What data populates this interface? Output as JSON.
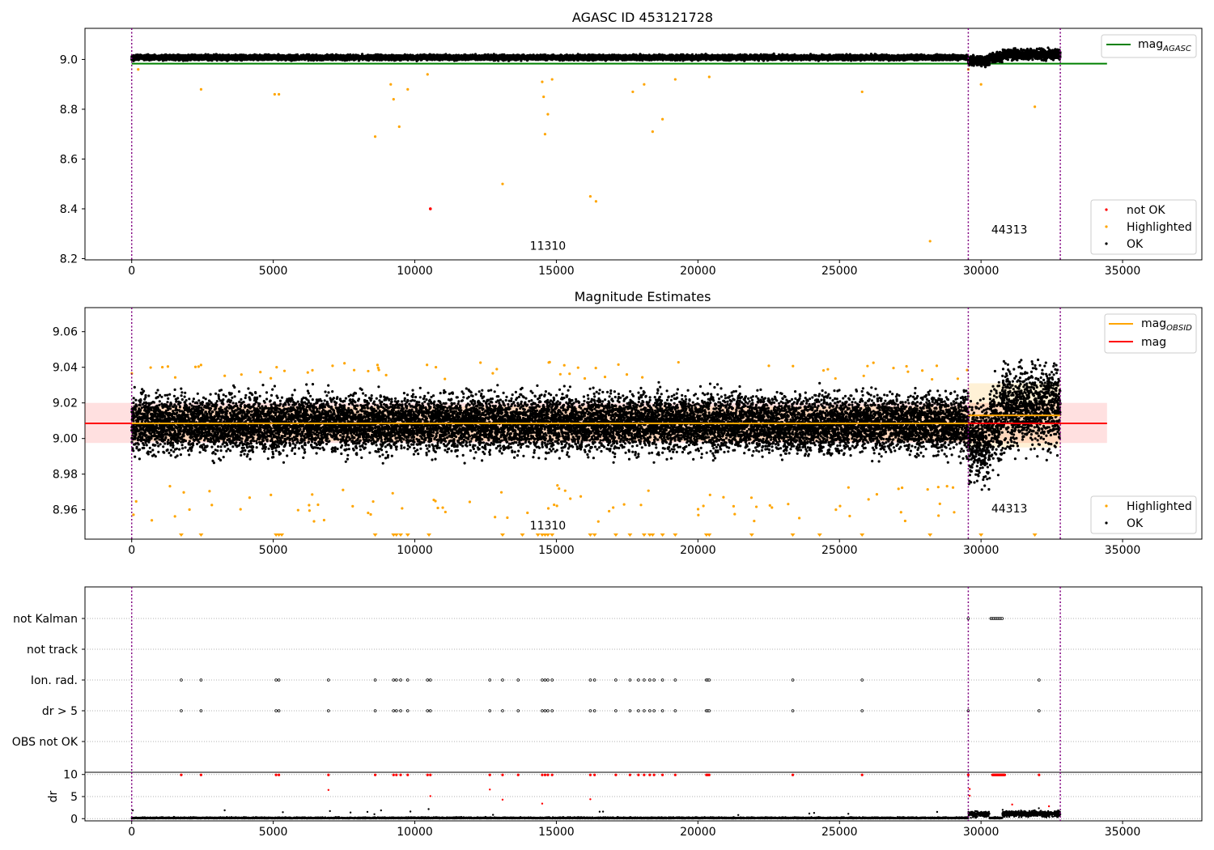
{
  "figure_title": "AGASC ID 453121728",
  "colors": {
    "ok": "#000000",
    "highlighted": "#ffa500",
    "not_ok": "#ff0000",
    "mag_agasc": "#008000",
    "mag_obsid": "#ffa500",
    "mag": "#ff0000",
    "obs_boundary": "#800080"
  },
  "chart_data": [
    {
      "type": "scatter",
      "title": "AGASC ID 453121728",
      "xlim": [
        -1650,
        37800
      ],
      "ylim": [
        8.195,
        9.125
      ],
      "xticks": [
        0,
        5000,
        10000,
        15000,
        20000,
        25000,
        30000,
        35000
      ],
      "yticks": [
        8.2,
        8.4,
        8.6,
        8.8,
        9.0
      ],
      "ytick_labels": [
        "8.2",
        "8.4",
        "8.6",
        "8.8",
        "9.0"
      ],
      "obs_boundaries": [
        0,
        29550,
        32800
      ],
      "obs_labels": [
        {
          "x": 14700,
          "y": 8.235,
          "text": "11310"
        },
        {
          "x": 31000,
          "y": 8.3,
          "text": "44313"
        }
      ],
      "mag_agasc": {
        "x": [
          0,
          34450
        ],
        "y": 8.983
      },
      "series": [
        {
          "name": "not OK",
          "points": [
            [
              10550,
              8.4
            ]
          ]
        },
        {
          "name": "Highlighted",
          "points": [
            [
              230,
              8.96
            ],
            [
              2450,
              8.88
            ],
            [
              5050,
              8.86
            ],
            [
              5200,
              8.86
            ],
            [
              8600,
              8.69
            ],
            [
              9150,
              8.9
            ],
            [
              9250,
              8.84
            ],
            [
              9450,
              8.73
            ],
            [
              9750,
              8.88
            ],
            [
              10450,
              8.94
            ],
            [
              13100,
              8.5
            ],
            [
              14500,
              8.91
            ],
            [
              14550,
              8.85
            ],
            [
              14600,
              8.7
            ],
            [
              14700,
              8.78
            ],
            [
              14850,
              8.92
            ],
            [
              16200,
              8.45
            ],
            [
              16400,
              8.43
            ],
            [
              17700,
              8.87
            ],
            [
              18100,
              8.9
            ],
            [
              18400,
              8.71
            ],
            [
              18750,
              8.76
            ],
            [
              19200,
              8.92
            ],
            [
              20400,
              8.93
            ],
            [
              25800,
              8.87
            ],
            [
              28200,
              8.27
            ],
            [
              29550,
              8.96
            ],
            [
              30000,
              8.9
            ],
            [
              31900,
              8.81
            ]
          ]
        },
        {
          "name": "OK",
          "summary": "dense band of OK points near 9.01 from x=0 to 32800"
        }
      ],
      "legend": {
        "position": "top-right",
        "entries": [
          "mag_AGASC"
        ]
      },
      "legend2": {
        "position": "bottom-right",
        "entries": [
          "not OK",
          "Highlighted",
          "OK"
        ]
      }
    },
    {
      "type": "scatter",
      "title": "Magnitude Estimates",
      "xlim": [
        -1650,
        37800
      ],
      "ylim": [
        8.9435,
        9.0735
      ],
      "xticks": [
        0,
        5000,
        10000,
        15000,
        20000,
        25000,
        30000,
        35000
      ],
      "yticks": [
        8.96,
        8.98,
        9.0,
        9.02,
        9.04,
        9.06
      ],
      "ytick_labels": [
        "8.96",
        "8.98",
        "9.00",
        "9.02",
        "9.04",
        "9.06"
      ],
      "obs_boundaries": [
        0,
        29550,
        32800
      ],
      "obs_labels": [
        {
          "x": 14700,
          "y": 8.949,
          "text": "11310"
        },
        {
          "x": 31000,
          "y": 8.9585,
          "text": "44313"
        }
      ],
      "mag": {
        "value": 9.0085,
        "band": [
          8.9975,
          9.02
        ],
        "x": [
          -1650,
          34450
        ]
      },
      "mag_obsid": [
        {
          "x": [
            0,
            29550
          ],
          "value": 9.0085,
          "band": [
            8.9985,
            9.018
          ]
        },
        {
          "x": [
            29550,
            32800
          ],
          "value": 9.013,
          "band": [
            8.995,
            9.031
          ]
        }
      ],
      "highlighted_below_axis_x": [
        1750,
        2450,
        5100,
        5200,
        5300,
        8600,
        9250,
        9350,
        9500,
        9750,
        10500,
        13100,
        13800,
        14350,
        14500,
        14600,
        14700,
        14850,
        16200,
        16350,
        17100,
        17600,
        18100,
        18300,
        18400,
        18750,
        19200,
        20300,
        20400,
        21900,
        23350,
        24300,
        25800,
        28200,
        30000,
        31900
      ],
      "series": [
        {
          "name": "Highlighted",
          "summary": "scattered points above and below the OK band"
        },
        {
          "name": "OK",
          "summary": "dense band of OK points between 8.98 and 9.04"
        }
      ],
      "legend": {
        "position": "top-right",
        "entries": [
          "mag_OBSID",
          "mag"
        ]
      },
      "legend2": {
        "position": "bottom-right",
        "entries": [
          "Highlighted",
          "OK"
        ]
      }
    },
    {
      "type": "scatter",
      "title": "",
      "xlim": [
        -1650,
        37800
      ],
      "categories": [
        "not Kalman",
        "not track",
        "Ion. rad.",
        "dr > 5",
        "OBS not OK"
      ],
      "flags": {
        "not Kalman": [
          29550,
          30350,
          30400,
          30450,
          30500,
          30550,
          30600,
          30650,
          30700,
          30750
        ],
        "not track": [],
        "Ion. rad.": [
          1750,
          2450,
          5100,
          5200,
          6950,
          8600,
          9250,
          9350,
          9500,
          9750,
          10450,
          10550,
          12650,
          13100,
          13650,
          14500,
          14600,
          14700,
          14850,
          16200,
          16350,
          17100,
          17600,
          17900,
          18100,
          18300,
          18450,
          18750,
          19200,
          20300,
          20350,
          20400,
          23350,
          25800,
          32050
        ],
        "dr > 5": [
          1750,
          2450,
          5100,
          5200,
          6950,
          8600,
          9250,
          9350,
          9500,
          9750,
          10450,
          10550,
          12650,
          13100,
          13650,
          14500,
          14600,
          14700,
          14850,
          16200,
          16350,
          17100,
          17600,
          17900,
          18100,
          18300,
          18450,
          18750,
          19200,
          20300,
          20350,
          20400,
          23350,
          25800,
          29550,
          32050
        ],
        "OBS not OK": []
      },
      "obs_boundaries": [
        0,
        29550,
        32800
      ]
    },
    {
      "type": "scatter",
      "title": "",
      "ylabel": "dr",
      "xlim": [
        -1650,
        37800
      ],
      "ylim": [
        -0.5,
        10.5
      ],
      "xticks": [
        0,
        5000,
        10000,
        15000,
        20000,
        25000,
        30000,
        35000
      ],
      "yticks": [
        0,
        5,
        10
      ],
      "ytick_labels": [
        "0",
        "5",
        "10"
      ],
      "obs_boundaries": [
        0,
        29550,
        32800
      ],
      "red_at_cap_x": [
        1750,
        2450,
        5100,
        5200,
        6950,
        8600,
        9250,
        9350,
        9500,
        9750,
        10450,
        10550,
        12650,
        13100,
        13650,
        14500,
        14600,
        14700,
        14850,
        16200,
        16350,
        17100,
        17600,
        17900,
        18100,
        18300,
        18450,
        18750,
        19200,
        20300,
        20350,
        20400,
        23350,
        25800,
        29550,
        32050
      ],
      "red_points": [
        [
          6950,
          6.5
        ],
        [
          10550,
          5.1
        ],
        [
          12650,
          6.6
        ],
        [
          13100,
          4.3
        ],
        [
          14500,
          3.4
        ],
        [
          16200,
          4.4
        ],
        [
          29600,
          6.7
        ],
        [
          29600,
          5.2
        ],
        [
          31100,
          3.2
        ],
        [
          32400,
          2.8
        ]
      ],
      "series": [
        {
          "name": "red",
          "summary": "flagged dr values"
        },
        {
          "name": "black",
          "summary": "dense band of dr values near 0"
        }
      ]
    }
  ],
  "x_tick_labels": [
    "0",
    "5000",
    "10000",
    "15000",
    "20000",
    "25000",
    "30000",
    "35000"
  ],
  "legend_labels": {
    "mag_agasc_main": "mag",
    "mag_agasc_sub": "AGASC",
    "mag_obsid_main": "mag",
    "mag_obsid_sub": "OBSID",
    "mag": "mag",
    "not_ok": "not OK",
    "highlighted": "Highlighted",
    "ok": "OK"
  },
  "subtitle_mag": "Magnitude Estimates",
  "dr_ylabel": "dr"
}
